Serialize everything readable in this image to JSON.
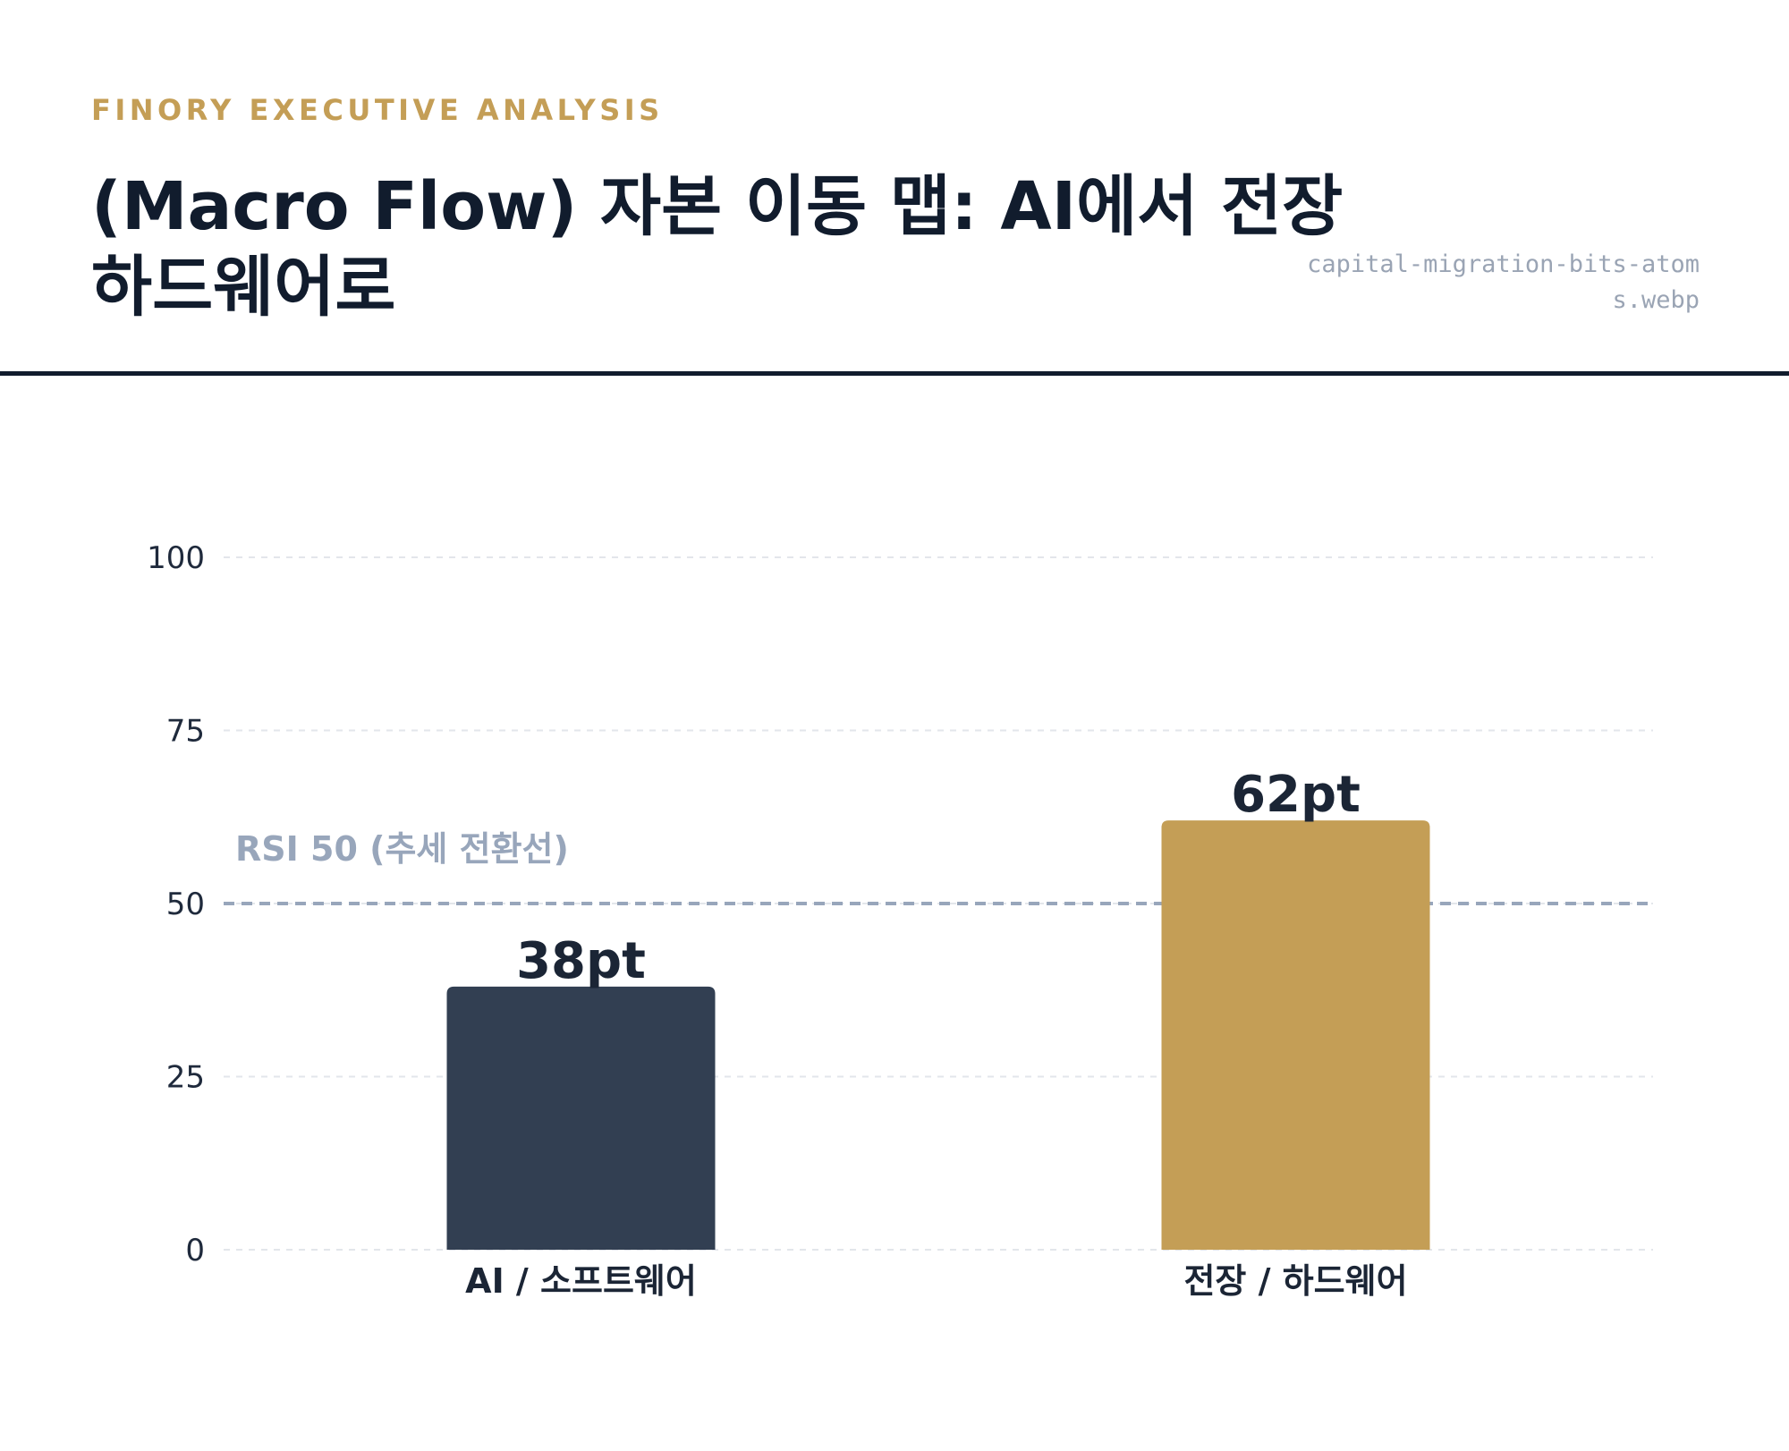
{
  "header": {
    "eyebrow": "FINORY EXECUTIVE ANALYSIS",
    "title": "(Macro Flow) 자본 이동 맵: AI에서 전장 하드웨어로",
    "filename": "capital-migration-bits-atoms.webp"
  },
  "colors": {
    "accent_gold": "#c49e56",
    "navy": "#323f52",
    "title_dark": "#111c2d",
    "reference_line": "#98a6bb",
    "grid": "#e3e6eb"
  },
  "chart_data": {
    "type": "bar",
    "categories": [
      "AI / 소프트웨어",
      "전장 / 하드웨어"
    ],
    "values": [
      38,
      62
    ],
    "data_labels": [
      "38pt",
      "62pt"
    ],
    "bar_colors": [
      "#323f52",
      "#c49e56"
    ],
    "y_ticks": [
      "0",
      "25",
      "50",
      "75",
      "100"
    ],
    "ylim": [
      0,
      100
    ],
    "grid": true,
    "reference_line": {
      "value": 50,
      "label": "RSI 50 (추세 전환선)"
    }
  }
}
